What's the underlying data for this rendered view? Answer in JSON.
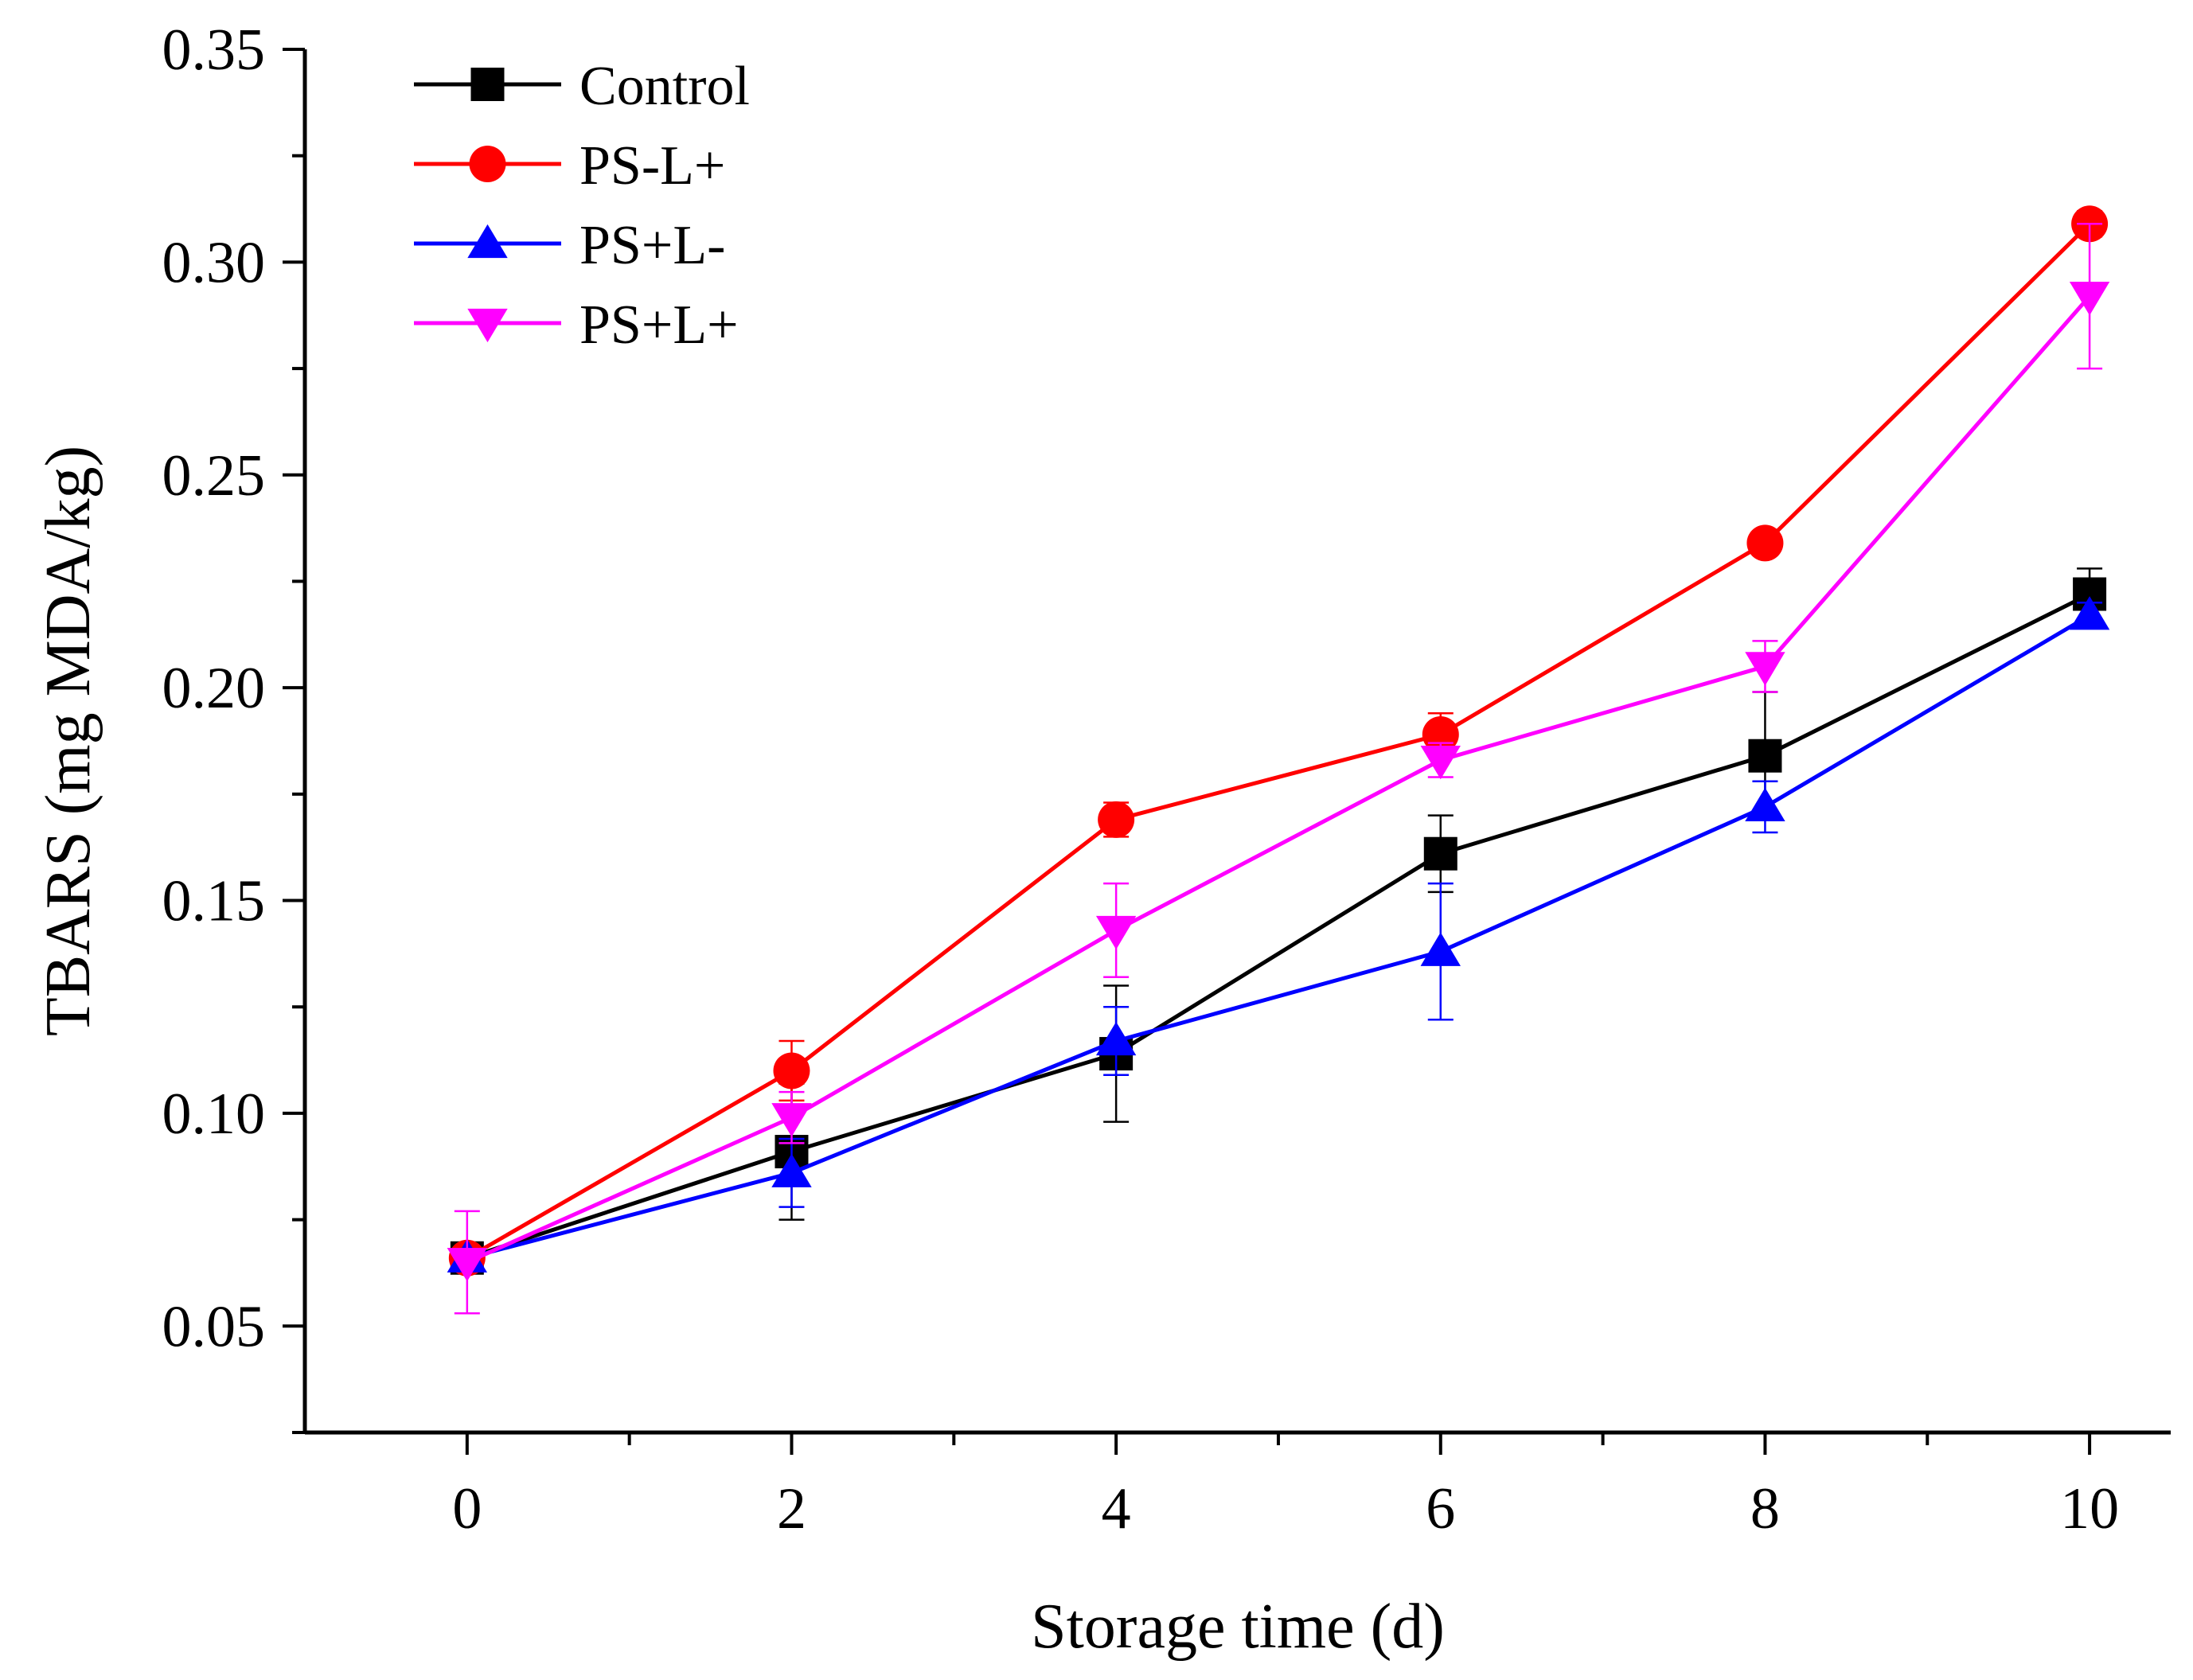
{
  "chart_data": {
    "type": "line",
    "xlabel": "Storage time (d)",
    "ylabel": "TBARS (mg MDA/kg)",
    "xlim": [
      -1,
      10.5
    ],
    "ylim": [
      0.025,
      0.35
    ],
    "x_ticks": [
      0,
      2,
      4,
      6,
      8,
      10
    ],
    "y_ticks": [
      0.05,
      0.1,
      0.15,
      0.2,
      0.25,
      0.3,
      0.35
    ],
    "x_tick_labels": [
      "0",
      "2",
      "4",
      "6",
      "8",
      "10"
    ],
    "y_tick_labels": [
      "0.05",
      "0.10",
      "0.15",
      "0.20",
      "0.25",
      "0.30",
      "0.35"
    ],
    "grid": false,
    "legend_position": "top-left",
    "x": [
      0,
      2,
      4,
      6,
      8,
      10
    ],
    "series": [
      {
        "name": "Control",
        "color": "#000000",
        "marker": "square",
        "values": [
          0.066,
          0.091,
          0.114,
          0.161,
          0.184,
          0.222
        ],
        "errors": [
          0.003,
          0.016,
          0.016,
          0.009,
          0.015,
          0.006
        ]
      },
      {
        "name": "PS-L+",
        "color": "#ff0000",
        "marker": "circle",
        "values": [
          0.066,
          0.11,
          0.169,
          0.189,
          0.234,
          0.309
        ],
        "errors": [
          0.002,
          0.007,
          0.004,
          0.005,
          0.002,
          0.003
        ]
      },
      {
        "name": "PS+L-",
        "color": "#0000ff",
        "marker": "triangle-up",
        "values": [
          0.066,
          0.086,
          0.117,
          0.138,
          0.172,
          0.217
        ],
        "errors": [
          0.002,
          0.008,
          0.008,
          0.016,
          0.006,
          0.003
        ]
      },
      {
        "name": "PS+L+",
        "color": "#ff00ff",
        "marker": "triangle-down",
        "values": [
          0.065,
          0.099,
          0.143,
          0.183,
          0.205,
          0.292
        ],
        "errors": [
          0.012,
          0.006,
          0.011,
          0.004,
          0.006,
          0.017
        ]
      }
    ]
  }
}
